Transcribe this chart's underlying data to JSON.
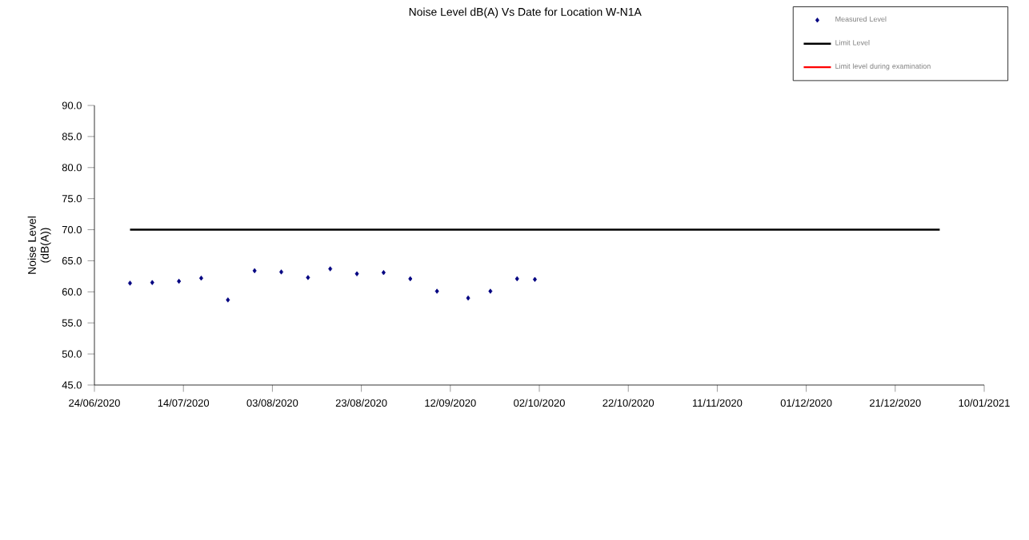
{
  "chart_data": {
    "type": "scatter",
    "title": "Noise Level dB(A) Vs Date for Location W-N1A",
    "ylabel": "Noise Level (dB(A))",
    "xlim": [
      "2020-06-24",
      "2021-01-10"
    ],
    "xticks": [
      {
        "value": "2020-06-24",
        "label": "24/06/2020"
      },
      {
        "value": "2020-07-14",
        "label": "14/07/2020"
      },
      {
        "value": "2020-08-03",
        "label": "03/08/2020"
      },
      {
        "value": "2020-08-23",
        "label": "23/08/2020"
      },
      {
        "value": "2020-09-12",
        "label": "12/09/2020"
      },
      {
        "value": "2020-10-02",
        "label": "02/10/2020"
      },
      {
        "value": "2020-10-22",
        "label": "22/10/2020"
      },
      {
        "value": "2020-11-11",
        "label": "11/11/2020"
      },
      {
        "value": "2020-12-01",
        "label": "01/12/2020"
      },
      {
        "value": "2020-12-21",
        "label": "21/12/2020"
      },
      {
        "value": "2021-01-10",
        "label": "10/01/2021"
      }
    ],
    "ylim": [
      45,
      90
    ],
    "yticks": [
      {
        "value": 45,
        "label": "45.0"
      },
      {
        "value": 50,
        "label": "50.0"
      },
      {
        "value": 55,
        "label": "55.0"
      },
      {
        "value": 60,
        "label": "60.0"
      },
      {
        "value": 65,
        "label": "65.0"
      },
      {
        "value": 70,
        "label": "70.0"
      },
      {
        "value": 75,
        "label": "75.0"
      },
      {
        "value": 80,
        "label": "80.0"
      },
      {
        "value": 85,
        "label": "85.0"
      },
      {
        "value": 90,
        "label": "90.0"
      }
    ],
    "legend": "top right",
    "grid": false,
    "series": [
      {
        "name": "Measured Level",
        "marker": "diamond",
        "color": "#000080",
        "x": [
          "2020-07-02",
          "2020-07-07",
          "2020-07-13",
          "2020-07-18",
          "2020-07-24",
          "2020-07-30",
          "2020-08-05",
          "2020-08-11",
          "2020-08-16",
          "2020-08-22",
          "2020-08-28",
          "2020-09-03",
          "2020-09-09",
          "2020-09-16",
          "2020-09-21",
          "2020-09-27",
          "2020-10-01"
        ],
        "values": [
          61.4,
          61.5,
          61.7,
          62.2,
          58.7,
          63.4,
          63.2,
          62.3,
          63.7,
          62.9,
          63.1,
          62.1,
          60.1,
          59.0,
          60.1,
          62.1,
          62.0
        ]
      },
      {
        "name": "Limit Level",
        "type": "line",
        "marker": "none",
        "color": "#000000",
        "x": [
          "2020-07-02",
          "2020-12-31"
        ],
        "values": [
          70,
          70
        ]
      },
      {
        "name": "Limit level during examination",
        "type": "line",
        "marker": "none",
        "color": "#ff0000"
      }
    ]
  }
}
